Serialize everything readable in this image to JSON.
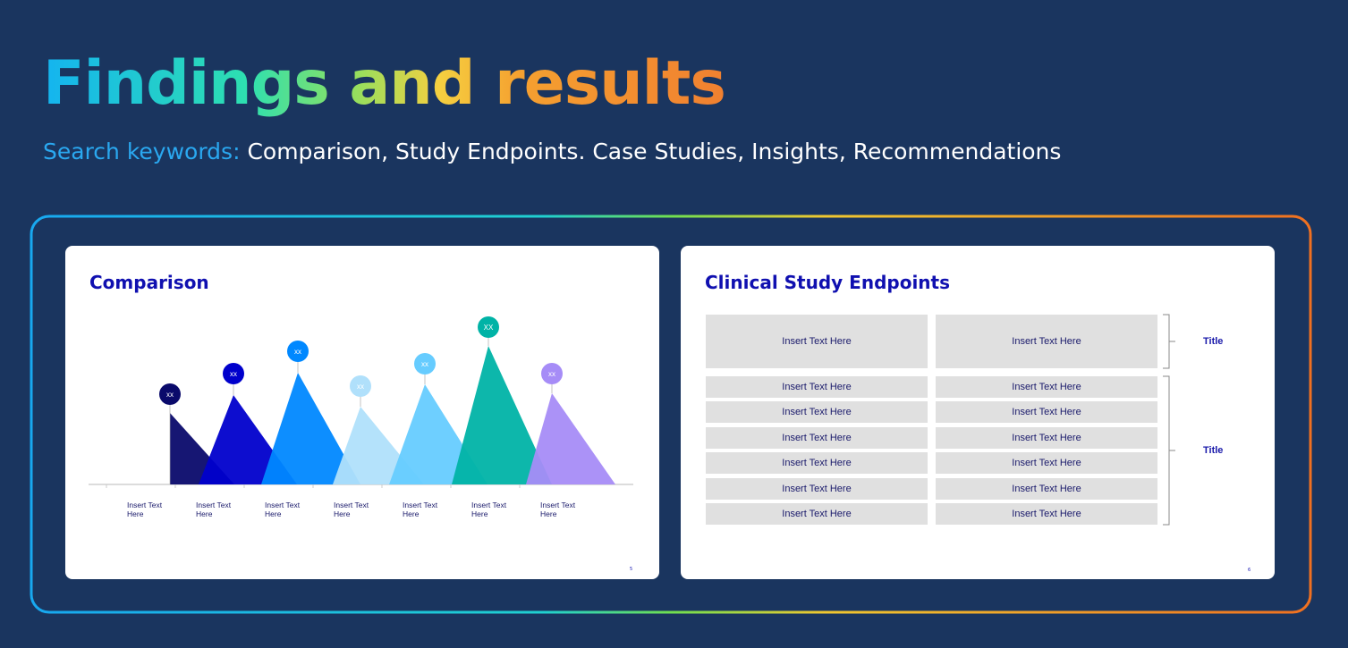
{
  "header": {
    "title_parts": [
      "Findings",
      "and",
      "results"
    ],
    "keywords_label": "Search keywords:",
    "keywords": "Comparison, Study Endpoints. Case Studies, Insights, Recommendations"
  },
  "slides": [
    {
      "title": "Comparison",
      "peaks": [
        {
          "badge": "xx",
          "label": "Insert Text Here"
        },
        {
          "badge": "xx",
          "label": "Insert Text Here"
        },
        {
          "badge": "xx",
          "label": "Insert Text Here"
        },
        {
          "badge": "xx",
          "label": "Insert Text Here"
        },
        {
          "badge": "xx",
          "label": "Insert Text Here"
        },
        {
          "badge": "XX",
          "label": "Insert Text Here"
        },
        {
          "badge": "xx",
          "label": "Insert Text Here"
        }
      ],
      "page": "5"
    },
    {
      "title": "Clinical Study Endpoints",
      "header_row": [
        "Insert Text Here",
        "Insert Text Here"
      ],
      "header_title": "Title",
      "rows": [
        [
          "Insert Text Here",
          "Insert Text Here"
        ],
        [
          "Insert Text Here",
          "Insert Text Here"
        ],
        [
          "Insert Text Here",
          "Insert Text Here"
        ],
        [
          "Insert Text Here",
          "Insert Text Here"
        ],
        [
          "Insert Text Here",
          "Insert Text Here"
        ],
        [
          "Insert Text Here",
          "Insert Text Here"
        ]
      ],
      "body_title": "Title",
      "page": "6"
    }
  ]
}
